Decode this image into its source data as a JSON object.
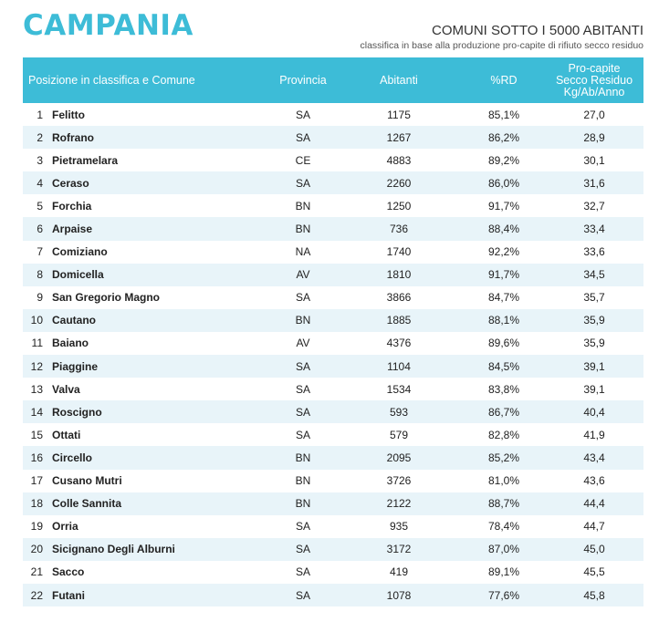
{
  "header": {
    "region": "CAMPANIA",
    "subtitle": "COMUNI SOTTO I 5000 ABITANTI",
    "caption": "classifica in base alla produzione pro-capite di rifiuto secco residuo"
  },
  "table": {
    "columns": {
      "position_comune": "Posizione in classifica e Comune",
      "provincia": "Provincia",
      "abitanti": "Abitanti",
      "rd": "%RD",
      "procapite_line1": "Pro-capite",
      "procapite_line2": "Secco Residuo",
      "procapite_line3": "Kg/Ab/Anno"
    },
    "rows": [
      {
        "rank": "1",
        "comune": "Felitto",
        "provincia": "SA",
        "abitanti": "1175",
        "rd": "85,1%",
        "secco": "27,0"
      },
      {
        "rank": "2",
        "comune": "Rofrano",
        "provincia": "SA",
        "abitanti": "1267",
        "rd": "86,2%",
        "secco": "28,9"
      },
      {
        "rank": "3",
        "comune": "Pietramelara",
        "provincia": "CE",
        "abitanti": "4883",
        "rd": "89,2%",
        "secco": "30,1"
      },
      {
        "rank": "4",
        "comune": "Ceraso",
        "provincia": "SA",
        "abitanti": "2260",
        "rd": "86,0%",
        "secco": "31,6"
      },
      {
        "rank": "5",
        "comune": "Forchia",
        "provincia": "BN",
        "abitanti": "1250",
        "rd": "91,7%",
        "secco": "32,7"
      },
      {
        "rank": "6",
        "comune": "Arpaise",
        "provincia": "BN",
        "abitanti": "736",
        "rd": "88,4%",
        "secco": "33,4"
      },
      {
        "rank": "7",
        "comune": "Comiziano",
        "provincia": "NA",
        "abitanti": "1740",
        "rd": "92,2%",
        "secco": "33,6"
      },
      {
        "rank": "8",
        "comune": "Domicella",
        "provincia": "AV",
        "abitanti": "1810",
        "rd": "91,7%",
        "secco": "34,5"
      },
      {
        "rank": "9",
        "comune": "San Gregorio Magno",
        "provincia": "SA",
        "abitanti": "3866",
        "rd": "84,7%",
        "secco": "35,7"
      },
      {
        "rank": "10",
        "comune": "Cautano",
        "provincia": "BN",
        "abitanti": "1885",
        "rd": "88,1%",
        "secco": "35,9"
      },
      {
        "rank": "11",
        "comune": "Baiano",
        "provincia": "AV",
        "abitanti": "4376",
        "rd": "89,6%",
        "secco": "35,9"
      },
      {
        "rank": "12",
        "comune": "Piaggine",
        "provincia": "SA",
        "abitanti": "1104",
        "rd": "84,5%",
        "secco": "39,1"
      },
      {
        "rank": "13",
        "comune": "Valva",
        "provincia": "SA",
        "abitanti": "1534",
        "rd": "83,8%",
        "secco": "39,1"
      },
      {
        "rank": "14",
        "comune": "Roscigno",
        "provincia": "SA",
        "abitanti": "593",
        "rd": "86,7%",
        "secco": "40,4"
      },
      {
        "rank": "15",
        "comune": "Ottati",
        "provincia": "SA",
        "abitanti": "579",
        "rd": "82,8%",
        "secco": "41,9"
      },
      {
        "rank": "16",
        "comune": "Circello",
        "provincia": "BN",
        "abitanti": "2095",
        "rd": "85,2%",
        "secco": "43,4"
      },
      {
        "rank": "17",
        "comune": "Cusano Mutri",
        "provincia": "BN",
        "abitanti": "3726",
        "rd": "81,0%",
        "secco": "43,6"
      },
      {
        "rank": "18",
        "comune": "Colle Sannita",
        "provincia": "BN",
        "abitanti": "2122",
        "rd": "88,7%",
        "secco": "44,4"
      },
      {
        "rank": "19",
        "comune": "Orria",
        "provincia": "SA",
        "abitanti": "935",
        "rd": "78,4%",
        "secco": "44,7"
      },
      {
        "rank": "20",
        "comune": "Sicignano Degli Alburni",
        "provincia": "SA",
        "abitanti": "3172",
        "rd": "87,0%",
        "secco": "45,0"
      },
      {
        "rank": "21",
        "comune": "Sacco",
        "provincia": "SA",
        "abitanti": "419",
        "rd": "89,1%",
        "secco": "45,5"
      },
      {
        "rank": "22",
        "comune": "Futani",
        "provincia": "SA",
        "abitanti": "1078",
        "rd": "77,6%",
        "secco": "45,8"
      }
    ]
  },
  "colors": {
    "accent": "#3dbcd7",
    "row_alt": "#e8f4f9"
  }
}
